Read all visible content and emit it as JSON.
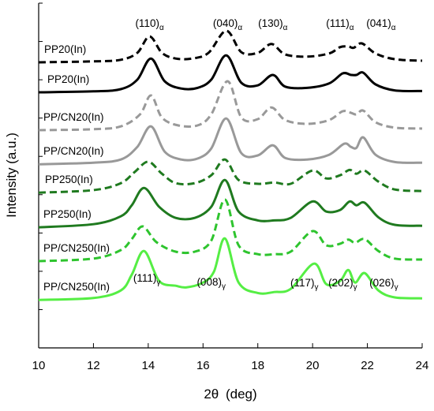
{
  "chart_data": {
    "type": "line",
    "xlabel_main": "2θ",
    "xlabel_unit": "(deg)",
    "ylabel": "Intensity (a.u.)",
    "xlim": [
      10,
      24
    ],
    "x_ticks": [
      10,
      12,
      14,
      16,
      18,
      20,
      22,
      24
    ],
    "y_ticks": 9,
    "series": [
      {
        "name": "PP20(In)",
        "style": "dashed",
        "color": "#000000",
        "baseline": 9.05,
        "points": [
          [
            10,
            0
          ],
          [
            12,
            0.03
          ],
          [
            13,
            0.08
          ],
          [
            13.6,
            0.3
          ],
          [
            14.05,
            0.82
          ],
          [
            14.5,
            0.3
          ],
          [
            15,
            0.12
          ],
          [
            15.6,
            0.12
          ],
          [
            16.2,
            0.3
          ],
          [
            16.85,
            1
          ],
          [
            17.4,
            0.32
          ],
          [
            18,
            0.3
          ],
          [
            18.5,
            0.58
          ],
          [
            19.0,
            0.25
          ],
          [
            19.8,
            0.18
          ],
          [
            20.6,
            0.28
          ],
          [
            21.0,
            0.48
          ],
          [
            21.3,
            0.5
          ],
          [
            21.5,
            0.46
          ],
          [
            21.8,
            0.6
          ],
          [
            22.3,
            0.28
          ],
          [
            23,
            0.1
          ],
          [
            24,
            0.05
          ]
        ]
      },
      {
        "name": "PP20(In)",
        "style": "solid",
        "color": "#000000",
        "baseline": 8.1,
        "points": [
          [
            10,
            0
          ],
          [
            12,
            0.03
          ],
          [
            13,
            0.1
          ],
          [
            13.6,
            0.4
          ],
          [
            14.1,
            1.07
          ],
          [
            14.6,
            0.35
          ],
          [
            15.2,
            0.12
          ],
          [
            15.8,
            0.14
          ],
          [
            16.3,
            0.4
          ],
          [
            16.85,
            1.17
          ],
          [
            17.4,
            0.3
          ],
          [
            18,
            0.22
          ],
          [
            18.55,
            0.55
          ],
          [
            19.0,
            0.18
          ],
          [
            19.8,
            0.14
          ],
          [
            20.6,
            0.28
          ],
          [
            21.1,
            0.6
          ],
          [
            21.4,
            0.55
          ],
          [
            21.6,
            0.55
          ],
          [
            21.85,
            0.62
          ],
          [
            22.3,
            0.25
          ],
          [
            23,
            0.06
          ],
          [
            24,
            0.04
          ]
        ]
      },
      {
        "name": "PP/CN20(In)",
        "style": "dashed",
        "color": "#999999",
        "baseline": 6.9,
        "points": [
          [
            10,
            0
          ],
          [
            12,
            0.03
          ],
          [
            13,
            0.12
          ],
          [
            13.7,
            0.5
          ],
          [
            14.1,
            1.1
          ],
          [
            14.5,
            0.4
          ],
          [
            15.1,
            0.15
          ],
          [
            15.8,
            0.15
          ],
          [
            16.3,
            0.5
          ],
          [
            16.9,
            1.55
          ],
          [
            17.4,
            0.4
          ],
          [
            18,
            0.35
          ],
          [
            18.5,
            0.72
          ],
          [
            19.0,
            0.32
          ],
          [
            19.8,
            0.2
          ],
          [
            20.6,
            0.32
          ],
          [
            21.1,
            0.6
          ],
          [
            21.4,
            0.55
          ],
          [
            21.6,
            0.5
          ],
          [
            21.85,
            0.62
          ],
          [
            22.3,
            0.25
          ],
          [
            23,
            0.08
          ],
          [
            24,
            0.05
          ]
        ]
      },
      {
        "name": "PP/CN20(In)",
        "style": "solid",
        "color": "#999999",
        "baseline": 5.82,
        "points": [
          [
            10,
            0
          ],
          [
            12,
            0.05
          ],
          [
            13,
            0.15
          ],
          [
            13.6,
            0.55
          ],
          [
            14.1,
            1.2
          ],
          [
            14.6,
            0.4
          ],
          [
            15.2,
            0.15
          ],
          [
            15.8,
            0.18
          ],
          [
            16.3,
            0.5
          ],
          [
            16.85,
            1.45
          ],
          [
            17.4,
            0.35
          ],
          [
            18,
            0.28
          ],
          [
            18.55,
            0.6
          ],
          [
            19.0,
            0.2
          ],
          [
            19.8,
            0.15
          ],
          [
            20.6,
            0.3
          ],
          [
            21.15,
            0.65
          ],
          [
            21.4,
            0.55
          ],
          [
            21.6,
            0.52
          ],
          [
            21.85,
            0.85
          ],
          [
            22.3,
            0.3
          ],
          [
            23,
            0.07
          ],
          [
            24,
            0.05
          ]
        ]
      },
      {
        "name": "PP250(In)",
        "style": "dashed",
        "color": "#1f7a1f",
        "baseline": 4.92,
        "points": [
          [
            10,
            0
          ],
          [
            12,
            0.08
          ],
          [
            13,
            0.3
          ],
          [
            13.5,
            0.65
          ],
          [
            14.0,
            0.98
          ],
          [
            14.5,
            0.6
          ],
          [
            15,
            0.3
          ],
          [
            15.7,
            0.3
          ],
          [
            16.3,
            0.55
          ],
          [
            16.8,
            1.05
          ],
          [
            17.3,
            0.4
          ],
          [
            18,
            0.28
          ],
          [
            18.6,
            0.32
          ],
          [
            19.2,
            0.28
          ],
          [
            20.0,
            0.7
          ],
          [
            20.5,
            0.45
          ],
          [
            21.0,
            0.55
          ],
          [
            21.35,
            0.72
          ],
          [
            21.6,
            0.6
          ],
          [
            21.9,
            0.7
          ],
          [
            22.4,
            0.35
          ],
          [
            23,
            0.1
          ],
          [
            24,
            0.05
          ]
        ]
      },
      {
        "name": "PP250(In)",
        "style": "solid",
        "color": "#1f7a1f",
        "baseline": 3.82,
        "points": [
          [
            10,
            0
          ],
          [
            12,
            0.1
          ],
          [
            13,
            0.35
          ],
          [
            13.4,
            0.7
          ],
          [
            13.85,
            1.25
          ],
          [
            14.4,
            0.65
          ],
          [
            15,
            0.3
          ],
          [
            15.7,
            0.3
          ],
          [
            16.3,
            0.65
          ],
          [
            16.8,
            1.5
          ],
          [
            17.3,
            0.5
          ],
          [
            18,
            0.22
          ],
          [
            18.6,
            0.22
          ],
          [
            19.2,
            0.3
          ],
          [
            20.0,
            0.82
          ],
          [
            20.5,
            0.5
          ],
          [
            21.0,
            0.55
          ],
          [
            21.35,
            0.82
          ],
          [
            21.6,
            0.7
          ],
          [
            21.9,
            0.78
          ],
          [
            22.4,
            0.32
          ],
          [
            23,
            0.08
          ],
          [
            24,
            0.05
          ]
        ]
      },
      {
        "name": "PP/CN250(In)",
        "style": "dashed",
        "color": "#2ec42e",
        "baseline": 2.75,
        "points": [
          [
            10,
            0
          ],
          [
            12,
            0.08
          ],
          [
            13,
            0.35
          ],
          [
            13.4,
            0.7
          ],
          [
            13.8,
            1.1
          ],
          [
            14.3,
            0.6
          ],
          [
            15,
            0.3
          ],
          [
            15.7,
            0.3
          ],
          [
            16.3,
            0.65
          ],
          [
            16.8,
            1.95
          ],
          [
            17.3,
            0.5
          ],
          [
            18,
            0.22
          ],
          [
            18.6,
            0.22
          ],
          [
            19.2,
            0.3
          ],
          [
            20.0,
            0.95
          ],
          [
            20.5,
            0.5
          ],
          [
            21.0,
            0.55
          ],
          [
            21.3,
            0.68
          ],
          [
            21.55,
            0.58
          ],
          [
            21.9,
            0.7
          ],
          [
            22.4,
            0.32
          ],
          [
            23,
            0.08
          ],
          [
            24,
            0.05
          ]
        ]
      },
      {
        "name": "PP/CN250(In)",
        "style": "solid",
        "color": "#55ee44",
        "baseline": 1.52,
        "points": [
          [
            10,
            0
          ],
          [
            12,
            0.06
          ],
          [
            13,
            0.3
          ],
          [
            13.4,
            0.8
          ],
          [
            13.85,
            1.55
          ],
          [
            14.4,
            0.6
          ],
          [
            15.0,
            0.45
          ],
          [
            15.4,
            0.4
          ],
          [
            16.0,
            0.55
          ],
          [
            16.4,
            0.9
          ],
          [
            16.8,
            1.95
          ],
          [
            17.3,
            0.55
          ],
          [
            18,
            0.22
          ],
          [
            18.6,
            0.25
          ],
          [
            19.2,
            0.35
          ],
          [
            20.05,
            1.15
          ],
          [
            20.5,
            0.5
          ],
          [
            21.0,
            0.6
          ],
          [
            21.3,
            0.95
          ],
          [
            21.55,
            0.55
          ],
          [
            21.9,
            0.85
          ],
          [
            22.4,
            0.3
          ],
          [
            23,
            0.08
          ],
          [
            24,
            0.05
          ]
        ]
      }
    ],
    "peak_labels_alpha": [
      {
        "text": "(110)",
        "sub": "α",
        "x": 14.05
      },
      {
        "text": "(040)",
        "sub": "α",
        "x": 16.9
      },
      {
        "text": "(130)",
        "sub": "α",
        "x": 18.55
      },
      {
        "text": "(111)",
        "sub": "α",
        "x": 21.0
      },
      {
        "text": "(041)",
        "sub": "α",
        "x": 22.5
      }
    ],
    "peak_labels_gamma": [
      {
        "text": "(111)",
        "sub": "γ",
        "x": 13.95
      },
      {
        "text": "(008)",
        "sub": "γ",
        "x": 16.3
      },
      {
        "text": "(117)",
        "sub": "γ",
        "x": 19.7
      },
      {
        "text": "(202)",
        "sub": "γ",
        "x": 21.1
      },
      {
        "text": "(026)",
        "sub": "γ",
        "x": 22.6
      }
    ]
  }
}
